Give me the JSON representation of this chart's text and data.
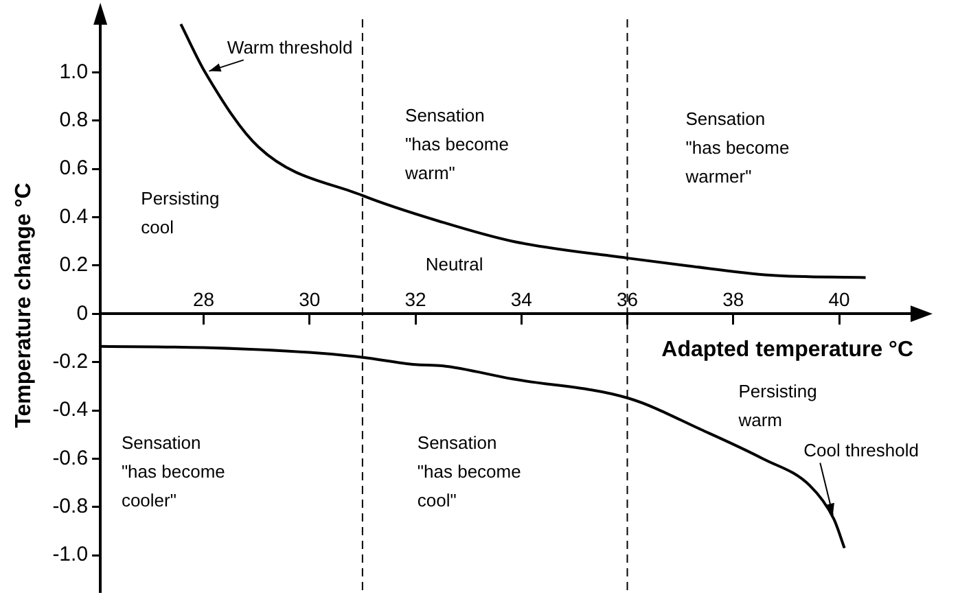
{
  "chart_data": {
    "type": "line",
    "xlabel": "Adapted temperature °C",
    "ylabel": "Temperature change °C",
    "xlim": [
      26.05,
      41.4
    ],
    "ylim": [
      -1.15,
      1.22
    ],
    "xticks": [
      28,
      30,
      32,
      34,
      36,
      38,
      40
    ],
    "yticks": [
      {
        "value": 1,
        "label": "1.0"
      },
      0.8,
      0.6,
      0.4,
      0.2,
      0,
      -0.2,
      -0.4,
      -0.6,
      -0.8,
      {
        "value": -1,
        "label": "-1.0"
      }
    ],
    "grid": false,
    "legend": false,
    "marker": "none",
    "line_style": "solid",
    "series": [
      {
        "name": "Warm threshold",
        "color": "#000000",
        "x": [
          27.57,
          28.03,
          29.04,
          31.0,
          32.5,
          33.84,
          36.03,
          37.1,
          38.7,
          40.5
        ],
        "values": [
          1.2,
          1.0,
          0.69,
          0.49,
          0.38,
          0.3,
          0.23,
          0.2,
          0.16,
          0.15
        ]
      },
      {
        "name": "Cool threshold",
        "color": "#000000",
        "x": [
          26.05,
          28,
          30,
          31,
          32,
          32.5,
          33.84,
          36.03,
          37.4,
          38.56,
          39.44,
          39.9,
          40.1
        ],
        "values": [
          -0.135,
          -0.14,
          -0.16,
          -0.18,
          -0.21,
          -0.215,
          -0.27,
          -0.35,
          -0.48,
          -0.6,
          -0.71,
          -0.85,
          -0.97
        ]
      }
    ],
    "ref_lines": [
      {
        "axis": "x",
        "value": 31,
        "color": "#000000",
        "line_style": "dashed"
      },
      {
        "axis": "x",
        "value": 36,
        "color": "#000000",
        "line_style": "dashed"
      }
    ],
    "annotations": [
      "Persisting\ncool",
      "Sensation\n\"has become\nwarm\"",
      "Sensation\n\"has become\nwarmer\"",
      "Neutral",
      "Persisting\nwarm",
      "Sensation\n\"has become\ncooler\"",
      "Sensation\n\"has become\ncool\""
    ]
  }
}
